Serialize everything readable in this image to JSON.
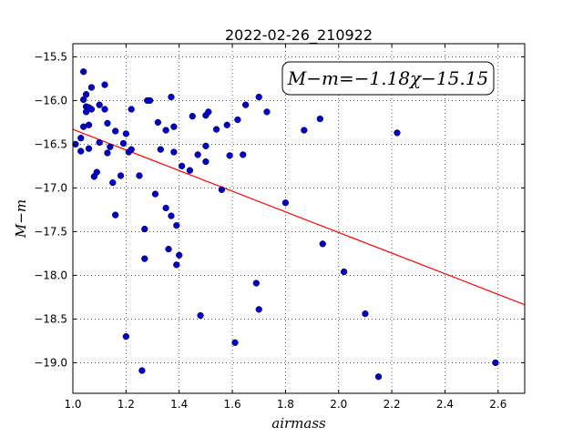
{
  "chart_data": {
    "type": "scatter",
    "title": "2022-02-26_210922",
    "xlabel": "airmass",
    "ylabel": "M−m",
    "xlim": [
      1.0,
      2.7
    ],
    "ylim": [
      -19.35,
      -15.35
    ],
    "x_ticks": [
      1.0,
      1.2,
      1.4,
      1.6,
      1.8,
      2.0,
      2.2,
      2.4,
      2.6
    ],
    "x_tick_labels": [
      "1.0",
      "1.2",
      "1.4",
      "1.6",
      "1.8",
      "2.0",
      "2.2",
      "2.4",
      "2.6"
    ],
    "y_ticks": [
      -15.5,
      -16.0,
      -16.5,
      -17.0,
      -17.5,
      -18.0,
      -18.5,
      -19.0
    ],
    "y_tick_labels": [
      "−15.5",
      "−16.0",
      "−16.5",
      "−17.0",
      "−17.5",
      "−18.0",
      "−18.5",
      "−19.0"
    ],
    "grid": true,
    "annotation": "M−m=−1.18χ−15.15",
    "fit_line": {
      "slope": -1.18,
      "intercept": -15.15,
      "color": "#ff0000"
    },
    "point_color": "#0000cc",
    "points": [
      [
        1.01,
        -16.5
      ],
      [
        1.03,
        -16.58
      ],
      [
        1.03,
        -16.43
      ],
      [
        1.04,
        -15.99
      ],
      [
        1.04,
        -16.3
      ],
      [
        1.04,
        -15.67
      ],
      [
        1.05,
        -15.93
      ],
      [
        1.05,
        -16.07
      ],
      [
        1.05,
        -16.13
      ],
      [
        1.06,
        -16.55
      ],
      [
        1.06,
        -16.28
      ],
      [
        1.06,
        -16.08
      ],
      [
        1.07,
        -15.85
      ],
      [
        1.07,
        -16.1
      ],
      [
        1.08,
        -16.87
      ],
      [
        1.09,
        -16.82
      ],
      [
        1.1,
        -16.05
      ],
      [
        1.1,
        -16.48
      ],
      [
        1.12,
        -15.82
      ],
      [
        1.12,
        -16.1
      ],
      [
        1.13,
        -16.26
      ],
      [
        1.13,
        -16.6
      ],
      [
        1.14,
        -16.53
      ],
      [
        1.15,
        -16.94
      ],
      [
        1.16,
        -16.35
      ],
      [
        1.16,
        -17.31
      ],
      [
        1.18,
        -16.86
      ],
      [
        1.19,
        -16.49
      ],
      [
        1.2,
        -18.7
      ],
      [
        1.2,
        -16.38
      ],
      [
        1.21,
        -16.59
      ],
      [
        1.22,
        -16.56
      ],
      [
        1.22,
        -16.1
      ],
      [
        1.25,
        -16.86
      ],
      [
        1.26,
        -19.09
      ],
      [
        1.27,
        -17.47
      ],
      [
        1.27,
        -17.81
      ],
      [
        1.28,
        -16.0
      ],
      [
        1.29,
        -16.0
      ],
      [
        1.31,
        -17.07
      ],
      [
        1.32,
        -16.25
      ],
      [
        1.33,
        -16.56
      ],
      [
        1.35,
        -16.34
      ],
      [
        1.35,
        -17.23
      ],
      [
        1.36,
        -17.7
      ],
      [
        1.37,
        -17.32
      ],
      [
        1.37,
        -15.96
      ],
      [
        1.38,
        -16.3
      ],
      [
        1.38,
        -16.59
      ],
      [
        1.39,
        -17.88
      ],
      [
        1.39,
        -17.43
      ],
      [
        1.4,
        -17.77
      ],
      [
        1.41,
        -16.75
      ],
      [
        1.44,
        -16.8
      ],
      [
        1.45,
        -16.18
      ],
      [
        1.47,
        -16.62
      ],
      [
        1.48,
        -18.46
      ],
      [
        1.5,
        -16.52
      ],
      [
        1.5,
        -16.7
      ],
      [
        1.5,
        -16.17
      ],
      [
        1.51,
        -16.13
      ],
      [
        1.54,
        -16.33
      ],
      [
        1.56,
        -17.02
      ],
      [
        1.58,
        -16.28
      ],
      [
        1.59,
        -16.63
      ],
      [
        1.61,
        -18.77
      ],
      [
        1.62,
        -16.22
      ],
      [
        1.64,
        -16.62
      ],
      [
        1.65,
        -16.05
      ],
      [
        1.69,
        -18.09
      ],
      [
        1.7,
        -18.39
      ],
      [
        1.7,
        -15.96
      ],
      [
        1.73,
        -16.13
      ],
      [
        1.8,
        -17.17
      ],
      [
        1.87,
        -16.34
      ],
      [
        1.93,
        -16.21
      ],
      [
        1.94,
        -17.64
      ],
      [
        2.02,
        -17.96
      ],
      [
        2.1,
        -18.44
      ],
      [
        2.15,
        -19.16
      ],
      [
        2.22,
        -16.37
      ],
      [
        2.59,
        -19.0
      ]
    ]
  }
}
